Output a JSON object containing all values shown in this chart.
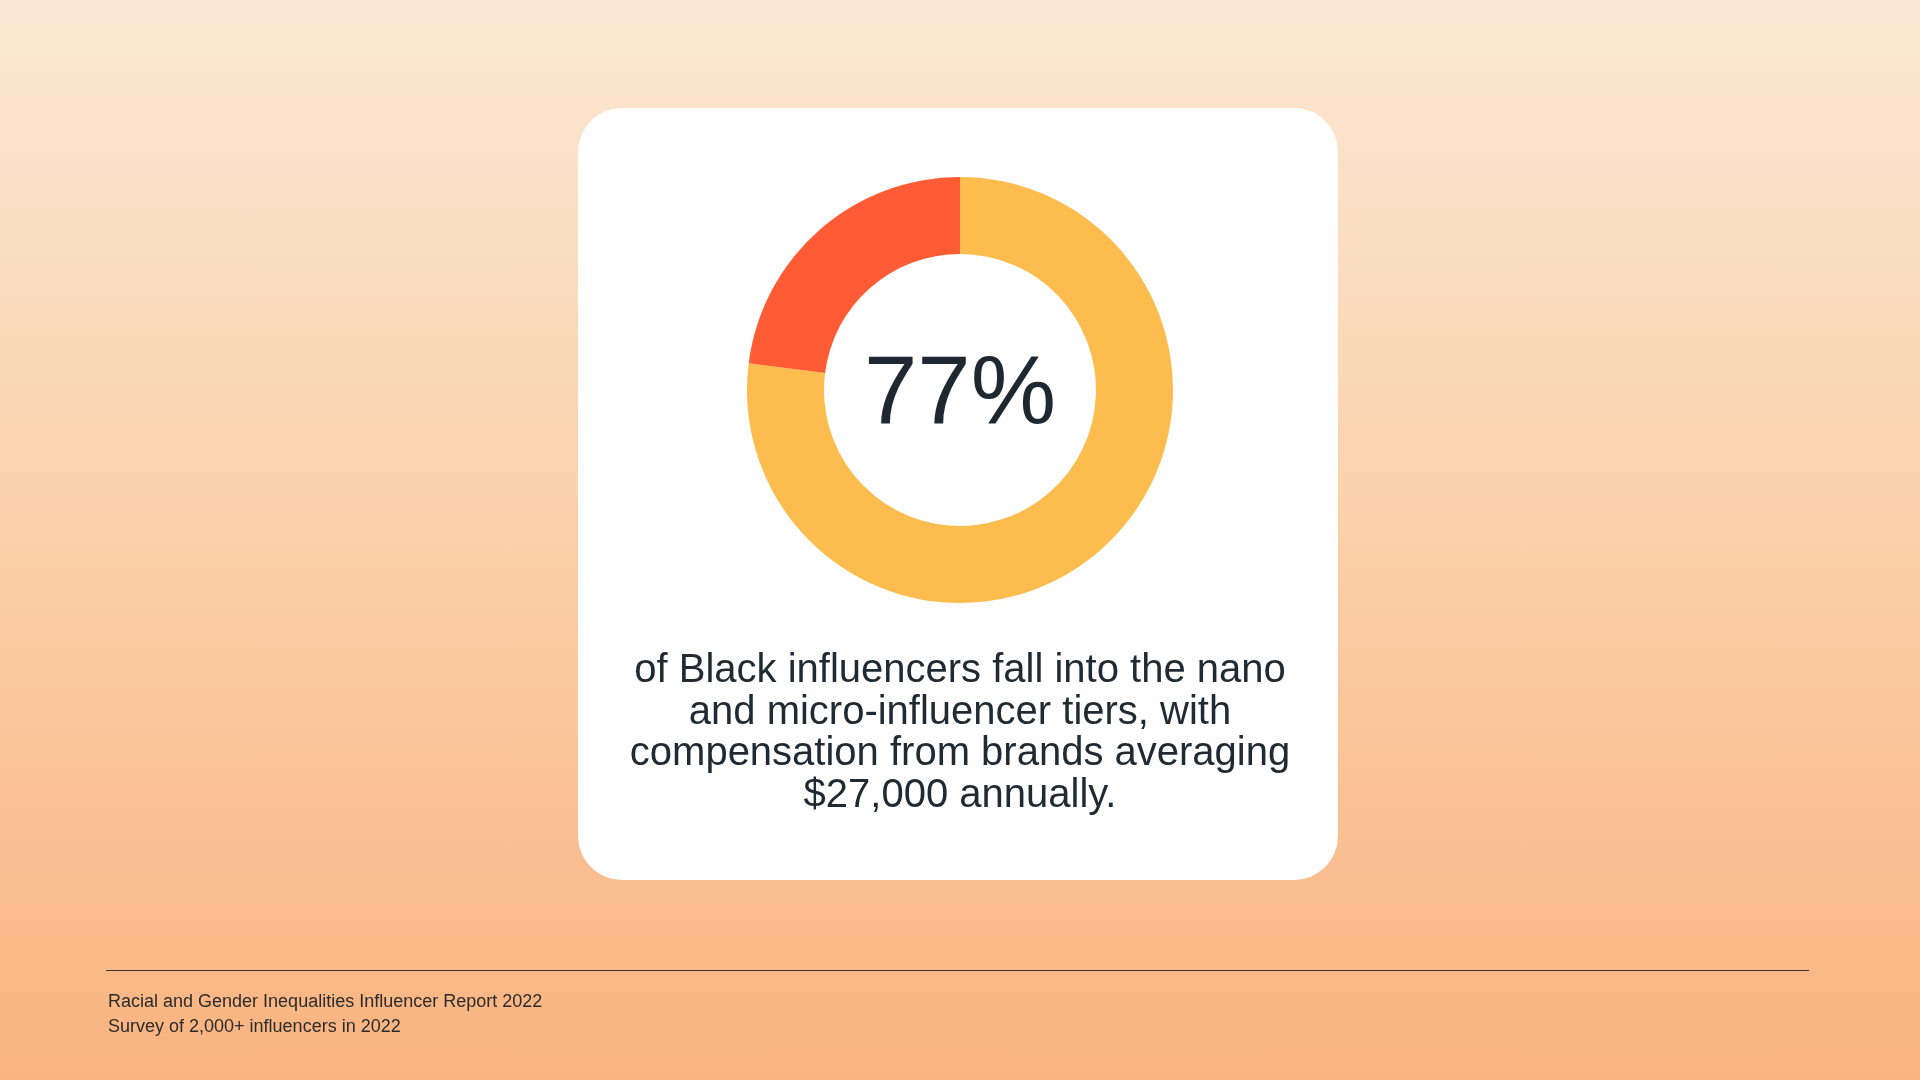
{
  "chart_data": {
    "type": "donut",
    "title": "77%",
    "categories": [
      null,
      null
    ],
    "values": [
      77,
      23
    ],
    "colors": [
      "#fdbd4e",
      "#ff5c35"
    ],
    "annotations": [
      "of Black influencers fall into the nano and micro-influencer tiers, with compensation from brands averaging $27,000 annually.",
      "Racial and Gender Inequalities Influencer Report 2022",
      "Survey of 2,000+ influencers in 2022"
    ]
  }
}
